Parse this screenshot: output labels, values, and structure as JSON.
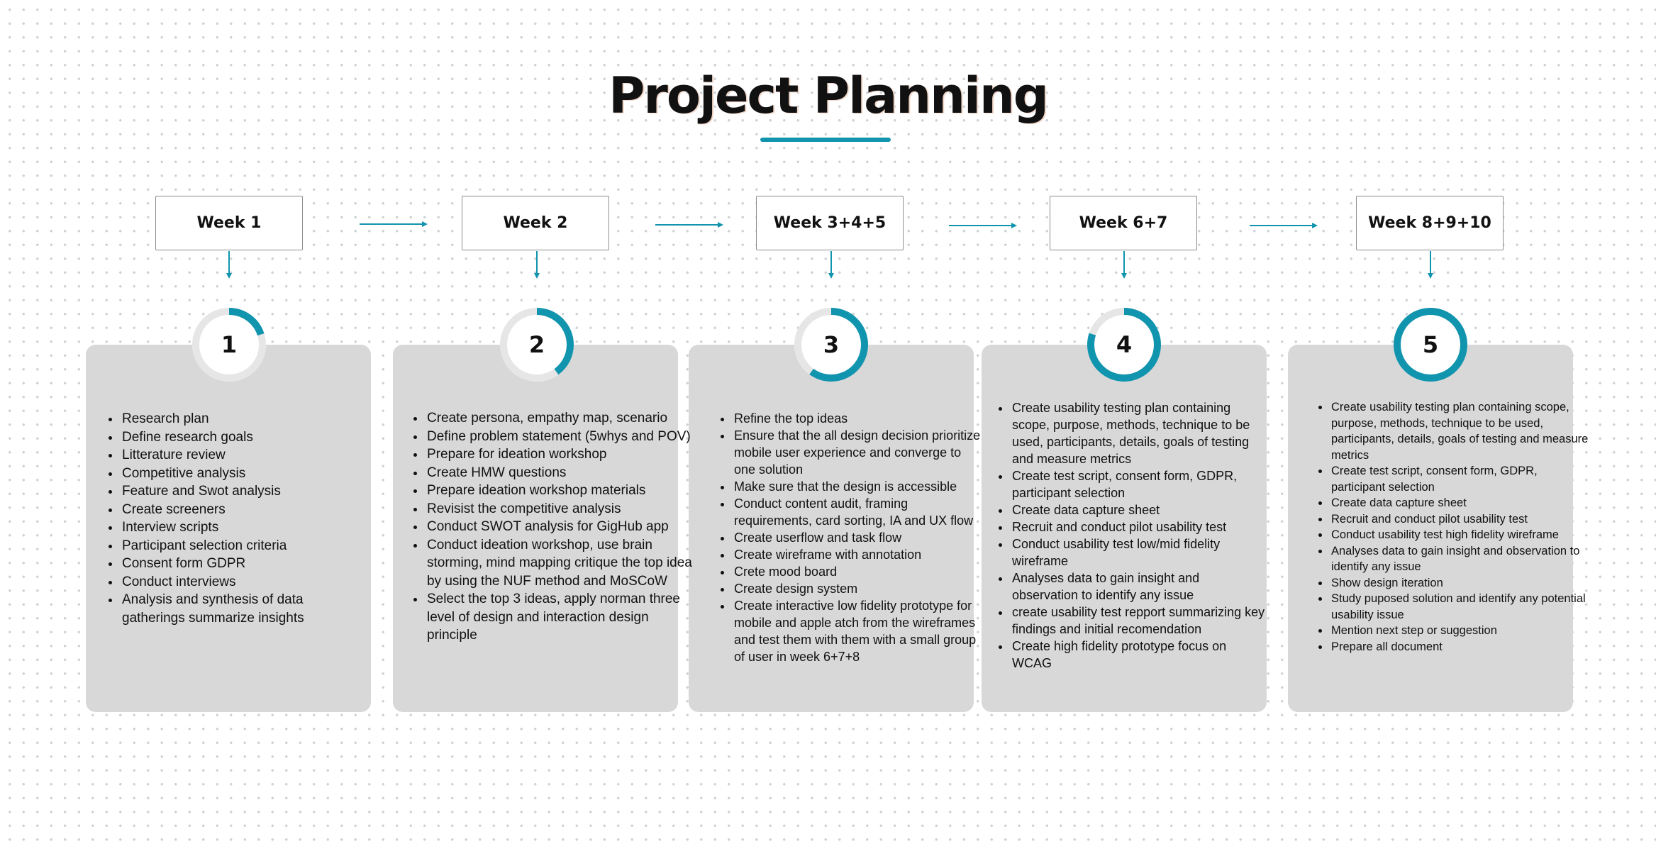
{
  "title": "Project Planning",
  "colors": {
    "accent": "#1194ad",
    "card": "#d8d8d8",
    "ring_track": "#e6e6e6"
  },
  "phases": [
    {
      "week": "Week 1",
      "number": "1",
      "progress": 0.2,
      "tasks": [
        "Research plan",
        "Define research goals",
        "Litterature review",
        "Competitive analysis",
        "Feature and Swot analysis",
        "Create screeners",
        "Interview scripts",
        "Participant selection criteria",
        "Consent form GDPR",
        "Conduct interviews",
        "Analysis and synthesis of data gatherings summarize insights"
      ]
    },
    {
      "week": "Week 2",
      "number": "2",
      "progress": 0.4,
      "tasks": [
        "Create persona, empathy map, scenario",
        "Define problem statement (5whys and POV)",
        "Prepare for ideation workshop",
        "Create HMW questions",
        "Prepare ideation workshop materials",
        "Revisist the competitive analysis",
        "Conduct SWOT analysis for GigHub app",
        "Conduct ideation workshop, use brain storming, mind mapping critique the top idea by using the NUF method and MoSCoW",
        "Select the top 3 ideas, apply norman three level of design and interaction design principle"
      ]
    },
    {
      "week": "Week 3+4+5",
      "number": "3",
      "progress": 0.6,
      "tasks": [
        "Refine the top ideas",
        "Ensure that the all design decision prioritize mobile user experience and converge to one solution",
        "Make sure that the design is accessible",
        "Conduct content audit, framing requirements, card sorting, IA and UX flow",
        "Create userflow and task flow",
        "Create wireframe with annotation",
        "Crete mood board",
        "Create design system",
        "Create interactive low fidelity prototype for mobile and apple atch from the wireframes and test them with them with a small group of user in week 6+7+8"
      ]
    },
    {
      "week": "Week 6+7",
      "number": "4",
      "progress": 0.8,
      "tasks": [
        "Create usability testing plan containing scope, purpose, methods, technique to be used, participants, details, goals of testing and measure metrics",
        "Create test script, consent form,  GDPR, participant selection",
        "Create data capture sheet",
        "Recruit and conduct pilot usability test",
        "Conduct usability test low/mid fidelity wireframe",
        "Analyses data to gain insight and observation to identify any issue",
        "create usability test repport summarizing key findings and initial recomendation",
        "Create high fidelity prototype focus on WCAG"
      ]
    },
    {
      "week": "Week 8+9+10",
      "number": "5",
      "progress": 1.0,
      "tasks": [
        "Create usability testing plan containing scope, purpose, methods, technique to be used, participants, details, goals of testing and measure metrics",
        "Create test script, consent form, GDPR, participant selection",
        "Create data capture sheet",
        "Recruit and conduct pilot usability test",
        "Conduct usability test high fidelity wireframe",
        "Analyses data to gain insight and observation to identify any issue",
        "Show design iteration",
        "Study puposed solution and identify any potential usability issue",
        "Mention next step or suggestion",
        "Prepare all document"
      ]
    }
  ]
}
